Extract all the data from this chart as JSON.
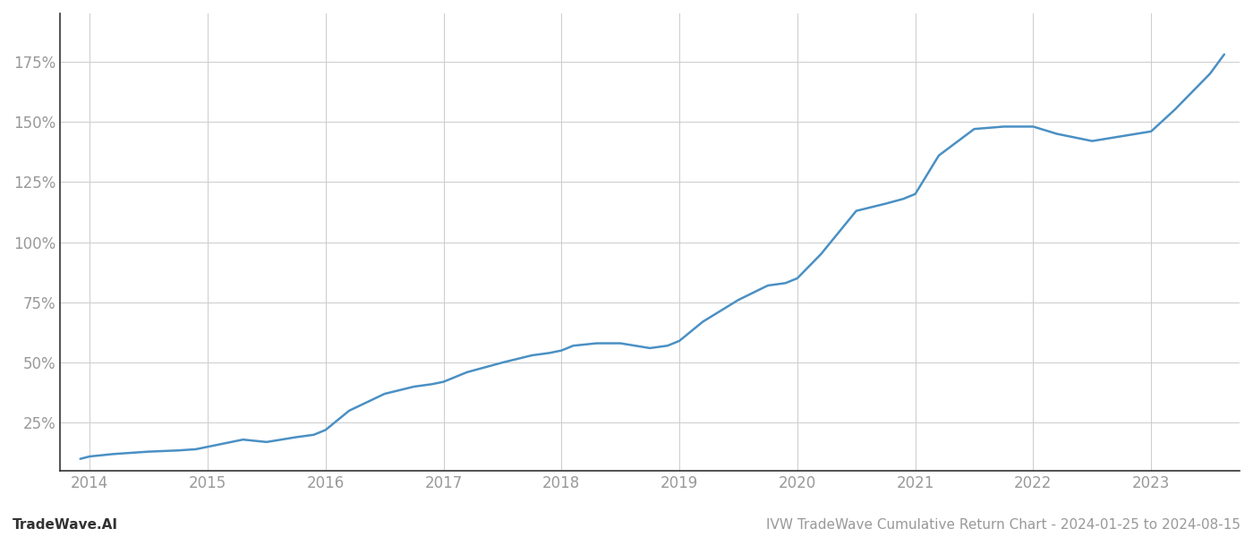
{
  "title": "IVW TradeWave Cumulative Return Chart - 2024-01-25 to 2024-08-15",
  "watermark": "TradeWave.AI",
  "line_color": "#4a90c4",
  "background_color": "#ffffff",
  "grid_color": "#cccccc",
  "x_years": [
    2014,
    2015,
    2016,
    2017,
    2018,
    2019,
    2020,
    2021,
    2022,
    2023
  ],
  "x_data": [
    2013.92,
    2014.0,
    2014.2,
    2014.5,
    2014.75,
    2014.9,
    2015.0,
    2015.1,
    2015.3,
    2015.5,
    2015.75,
    2015.9,
    2016.0,
    2016.2,
    2016.5,
    2016.75,
    2016.9,
    2017.0,
    2017.2,
    2017.5,
    2017.75,
    2017.9,
    2018.0,
    2018.1,
    2018.3,
    2018.5,
    2018.75,
    2018.9,
    2019.0,
    2019.2,
    2019.5,
    2019.75,
    2019.9,
    2020.0,
    2020.2,
    2020.5,
    2020.75,
    2020.9,
    2021.0,
    2021.2,
    2021.5,
    2021.75,
    2022.0,
    2022.2,
    2022.5,
    2022.75,
    2023.0,
    2023.2,
    2023.5,
    2023.62
  ],
  "y_data": [
    10,
    11,
    12,
    13,
    13.5,
    14,
    15,
    16,
    18,
    17,
    19,
    20,
    22,
    30,
    37,
    40,
    41,
    42,
    46,
    50,
    53,
    54,
    55,
    57,
    58,
    58,
    56,
    57,
    59,
    67,
    76,
    82,
    83,
    85,
    95,
    113,
    116,
    118,
    120,
    136,
    147,
    148,
    148,
    145,
    142,
    144,
    146,
    155,
    170,
    178
  ],
  "yticks": [
    25,
    50,
    75,
    100,
    125,
    150,
    175
  ],
  "ylim": [
    5,
    195
  ],
  "xlim": [
    2013.75,
    2023.75
  ],
  "line_width": 1.8,
  "title_fontsize": 11,
  "watermark_fontsize": 11,
  "tick_fontsize": 12,
  "tick_color": "#999999",
  "spine_color": "#333333"
}
